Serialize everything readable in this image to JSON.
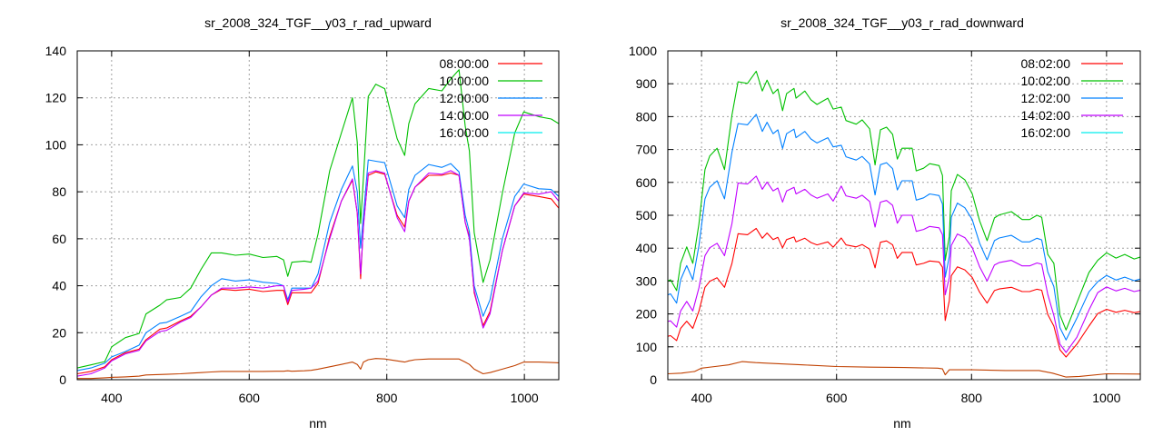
{
  "chart_data": [
    {
      "type": "line",
      "title": "sr_2008_324_TGF__y03_r_rad_upward",
      "xlabel": "nm",
      "ylabel": "",
      "xlim": [
        350,
        1050
      ],
      "ylim": [
        0,
        140
      ],
      "xticks": [
        400,
        600,
        800,
        1000
      ],
      "yticks": [
        0,
        20,
        40,
        60,
        80,
        100,
        120,
        140
      ],
      "grid": true,
      "legend_position": "top-right",
      "x": [
        350,
        370,
        390,
        400,
        420,
        440,
        450,
        470,
        480,
        500,
        515,
        530,
        545,
        560,
        580,
        600,
        620,
        640,
        650,
        656,
        662,
        680,
        690,
        700,
        717,
        734,
        750,
        757,
        762,
        766,
        773,
        784,
        797,
        815,
        826,
        832,
        841,
        861,
        880,
        893,
        905,
        914,
        920,
        927,
        940,
        950,
        968,
        986,
        999,
        1021,
        1039,
        1050
      ],
      "series": [
        {
          "name": "08:00:00",
          "color": "#ff0000",
          "line_color": "#ff0000",
          "values": [
            2.5,
            3.5,
            5.5,
            8.5,
            11.5,
            13,
            17,
            21.5,
            22,
            25,
            27,
            31,
            36,
            38.5,
            38,
            38.5,
            37.5,
            38,
            38,
            32,
            37,
            37,
            37,
            41,
            61,
            76,
            85,
            71,
            43,
            66,
            87,
            88.5,
            87.5,
            70,
            65,
            76,
            82,
            87,
            87,
            88,
            87,
            67,
            61,
            37,
            23,
            29,
            55,
            74,
            79,
            78,
            77,
            73
          ]
        },
        {
          "name": "10:00:00",
          "color": "#00c000",
          "line_color": "#00c000",
          "values": [
            5,
            6.3,
            7.7,
            14,
            17.9,
            19.7,
            28,
            31.7,
            34,
            35,
            39,
            47,
            54,
            54,
            53,
            53.5,
            52,
            52.5,
            51,
            44,
            50,
            50.5,
            50,
            62,
            89,
            105,
            120,
            101,
            66.5,
            86,
            120.6,
            125.8,
            123.9,
            102.6,
            95.5,
            109,
            117.5,
            124,
            123,
            128,
            132,
            108,
            97.4,
            62.6,
            41.4,
            51,
            79.4,
            105,
            114,
            112,
            111,
            109
          ]
        },
        {
          "name": "12:00:00",
          "color": "#0080ff",
          "line_color": "#0080ff",
          "values": [
            3.9,
            5,
            7,
            9.7,
            12,
            14.7,
            20,
            24,
            24.4,
            27,
            29,
            35.3,
            40,
            43,
            42,
            42.5,
            41.5,
            41,
            40,
            34,
            39,
            39,
            39,
            45,
            67,
            81,
            91,
            80,
            56,
            70,
            93.6,
            93,
            92.4,
            74,
            69,
            81,
            87,
            91.6,
            90.4,
            92,
            88.5,
            70,
            63,
            40,
            27,
            34,
            60,
            78,
            83.3,
            81.3,
            81,
            78
          ]
        },
        {
          "name": "14:00:00",
          "color": "#c000ff",
          "line_color": "#c000ff",
          "values": [
            1.5,
            2.5,
            5,
            8,
            11,
            12.5,
            16.5,
            20.5,
            21,
            24.5,
            26.5,
            31,
            36,
            39,
            39,
            39.5,
            39,
            40,
            40,
            33,
            38,
            38.5,
            39,
            42,
            60,
            76,
            85.5,
            71,
            45,
            65,
            88,
            89,
            88,
            69,
            63,
            76,
            82,
            88,
            87.5,
            89,
            87,
            67,
            60,
            38,
            22,
            28,
            55,
            74,
            79.5,
            79,
            80,
            76
          ]
        },
        {
          "name": "16:00:00",
          "color": "#00eeee",
          "line_color": "#c04000",
          "values": [
            0.5,
            0.5,
            0.8,
            1,
            1.2,
            1.5,
            2,
            2.2,
            2.3,
            2.5,
            2.8,
            3,
            3.3,
            3.5,
            3.5,
            3.5,
            3.5,
            3.6,
            3.6,
            3.8,
            3.6,
            3.8,
            4,
            4.5,
            5.5,
            6.5,
            7.5,
            6.5,
            4.5,
            7.5,
            8.5,
            9,
            8.8,
            8,
            7.5,
            8,
            8.5,
            8.8,
            8.8,
            8.8,
            8.8,
            7.5,
            6.5,
            4.5,
            2.5,
            3,
            4.5,
            6,
            7.5,
            7.5,
            7.3,
            7.2
          ]
        }
      ]
    },
    {
      "type": "line",
      "title": "sr_2008_324_TGF__y03_r_rad_downward",
      "xlabel": "nm",
      "ylabel": "",
      "xlim": [
        350,
        1050
      ],
      "ylim": [
        0,
        1000
      ],
      "xticks": [
        400,
        600,
        800,
        1000
      ],
      "yticks": [
        0,
        100,
        200,
        300,
        400,
        500,
        600,
        700,
        800,
        900,
        1000
      ],
      "grid": true,
      "legend_position": "top-right",
      "x": [
        350,
        354,
        363,
        369,
        378,
        387,
        396,
        405,
        412,
        423,
        434,
        445,
        454,
        468,
        481,
        490,
        497,
        506,
        513,
        520,
        526,
        537,
        540,
        553,
        562,
        571,
        587,
        595,
        607,
        614,
        629,
        638,
        649,
        657,
        665,
        674,
        683,
        690,
        697,
        712,
        718,
        729,
        738,
        752,
        757,
        761,
        767,
        770,
        779,
        790,
        801,
        812,
        823,
        834,
        841,
        859,
        875,
        886,
        897,
        904,
        913,
        922,
        931,
        940,
        956,
        974,
        987,
        1000,
        1014,
        1027,
        1041,
        1050
      ],
      "series": [
        {
          "name": "08:02:00",
          "color": "#ff0000",
          "line_color": "#ff0000",
          "values": [
            132,
            134,
            119,
            156,
            178,
            156,
            208,
            281,
            299,
            310,
            281,
            354,
            444,
            441,
            460,
            430,
            446,
            426,
            433,
            401,
            426,
            434,
            419,
            430,
            417,
            410,
            419,
            403,
            431,
            410,
            404,
            411,
            397,
            340,
            418,
            422,
            410,
            369,
            387,
            387,
            349,
            354,
            361,
            358,
            342,
            180,
            240,
            316,
            343,
            334,
            311,
            266,
            233,
            271,
            276,
            281,
            268,
            268,
            275,
            272,
            198,
            163,
            91,
            69,
            108,
            163,
            201,
            214,
            205,
            211,
            204,
            207
          ]
        },
        {
          "name": "10:02:00",
          "color": "#00c000",
          "line_color": "#00c000",
          "values": [
            300,
            304,
            271,
            354,
            404,
            354,
            473,
            639,
            680,
            704,
            639,
            805,
            906,
            901,
            938,
            878,
            911,
            870,
            884,
            818,
            870,
            886,
            856,
            878,
            851,
            837,
            856,
            823,
            829,
            788,
            777,
            790,
            763,
            653,
            760,
            768,
            746,
            671,
            704,
            704,
            635,
            643,
            657,
            651,
            621,
            363,
            436,
            575,
            624,
            608,
            566,
            483,
            423,
            492,
            501,
            511,
            487,
            487,
            500,
            494,
            381,
            354,
            197,
            151,
            234,
            326,
            363,
            386,
            370,
            381,
            367,
            373
          ]
        },
        {
          "name": "12:02:00",
          "color": "#0080ff",
          "line_color": "#0080ff",
          "values": [
            258,
            261,
            233,
            304,
            347,
            304,
            407,
            550,
            585,
            605,
            550,
            692,
            779,
            775,
            807,
            755,
            783,
            748,
            760,
            703,
            748,
            762,
            736,
            755,
            732,
            720,
            736,
            708,
            713,
            678,
            668,
            679,
            656,
            562,
            654,
            660,
            642,
            577,
            605,
            605,
            546,
            553,
            565,
            560,
            534,
            312,
            375,
            494,
            537,
            523,
            487,
            415,
            364,
            423,
            431,
            439,
            419,
            419,
            430,
            425,
            328,
            283,
            158,
            121,
            187,
            267,
            298,
            317,
            303,
            312,
            301,
            306
          ]
        },
        {
          "name": "14:02:00",
          "color": "#c000ff",
          "line_color": "#c000ff",
          "values": [
            177,
            179,
            160,
            209,
            238,
            209,
            279,
            377,
            401,
            415,
            377,
            475,
            598,
            595,
            619,
            579,
            601,
            574,
            583,
            540,
            574,
            585,
            565,
            579,
            562,
            552,
            565,
            543,
            589,
            559,
            552,
            561,
            542,
            464,
            540,
            545,
            530,
            476,
            500,
            500,
            451,
            457,
            466,
            462,
            441,
            258,
            310,
            408,
            443,
            432,
            402,
            343,
            300,
            349,
            356,
            363,
            346,
            346,
            355,
            351,
            259,
            195,
            108,
            83,
            129,
            212,
            265,
            282,
            270,
            278,
            268,
            272
          ]
        },
        {
          "name": "16:02:00",
          "color": "#00eeee",
          "line_color": "#c04000",
          "x": [
            350,
            370,
            390,
            400,
            420,
            440,
            460,
            480,
            500,
            550,
            600,
            650,
            700,
            750,
            757,
            761,
            767,
            800,
            850,
            900,
            920,
            940,
            960,
            1000,
            1050
          ],
          "values": [
            18,
            20,
            25,
            35,
            40,
            45,
            55,
            52,
            50,
            45,
            40,
            38,
            37,
            35,
            33,
            15,
            30,
            30,
            28,
            28,
            20,
            8,
            10,
            18,
            17
          ]
        }
      ]
    }
  ]
}
